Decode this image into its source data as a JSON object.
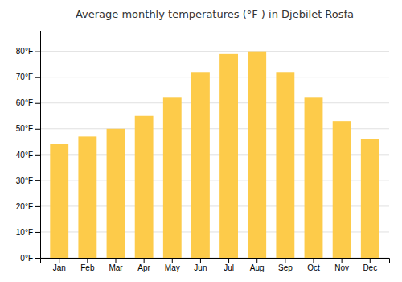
{
  "chart_data": {
    "type": "bar",
    "title": "Average monthly temperatures (°F ) in Djebilet Rosfa",
    "categories": [
      "Jan",
      "Feb",
      "Mar",
      "Apr",
      "May",
      "Jun",
      "Jul",
      "Aug",
      "Sep",
      "Oct",
      "Nov",
      "Dec"
    ],
    "values": [
      44,
      47,
      50,
      55,
      62,
      72,
      79,
      80,
      72,
      62,
      53,
      46
    ],
    "color": "#FDCB4A",
    "ylim": [
      0,
      88
    ],
    "yticks": [
      {
        "value": 0,
        "label": "0°F"
      },
      {
        "value": 10,
        "label": "10°F"
      },
      {
        "value": 20,
        "label": "20°F"
      },
      {
        "value": 30,
        "label": "30°F"
      },
      {
        "value": 40,
        "label": "40°F"
      },
      {
        "value": 50,
        "label": "50°F"
      },
      {
        "value": 60,
        "label": "60°F"
      },
      {
        "value": 70,
        "label": "70°F"
      },
      {
        "value": 80,
        "label": "80°F"
      }
    ],
    "grid": true
  }
}
